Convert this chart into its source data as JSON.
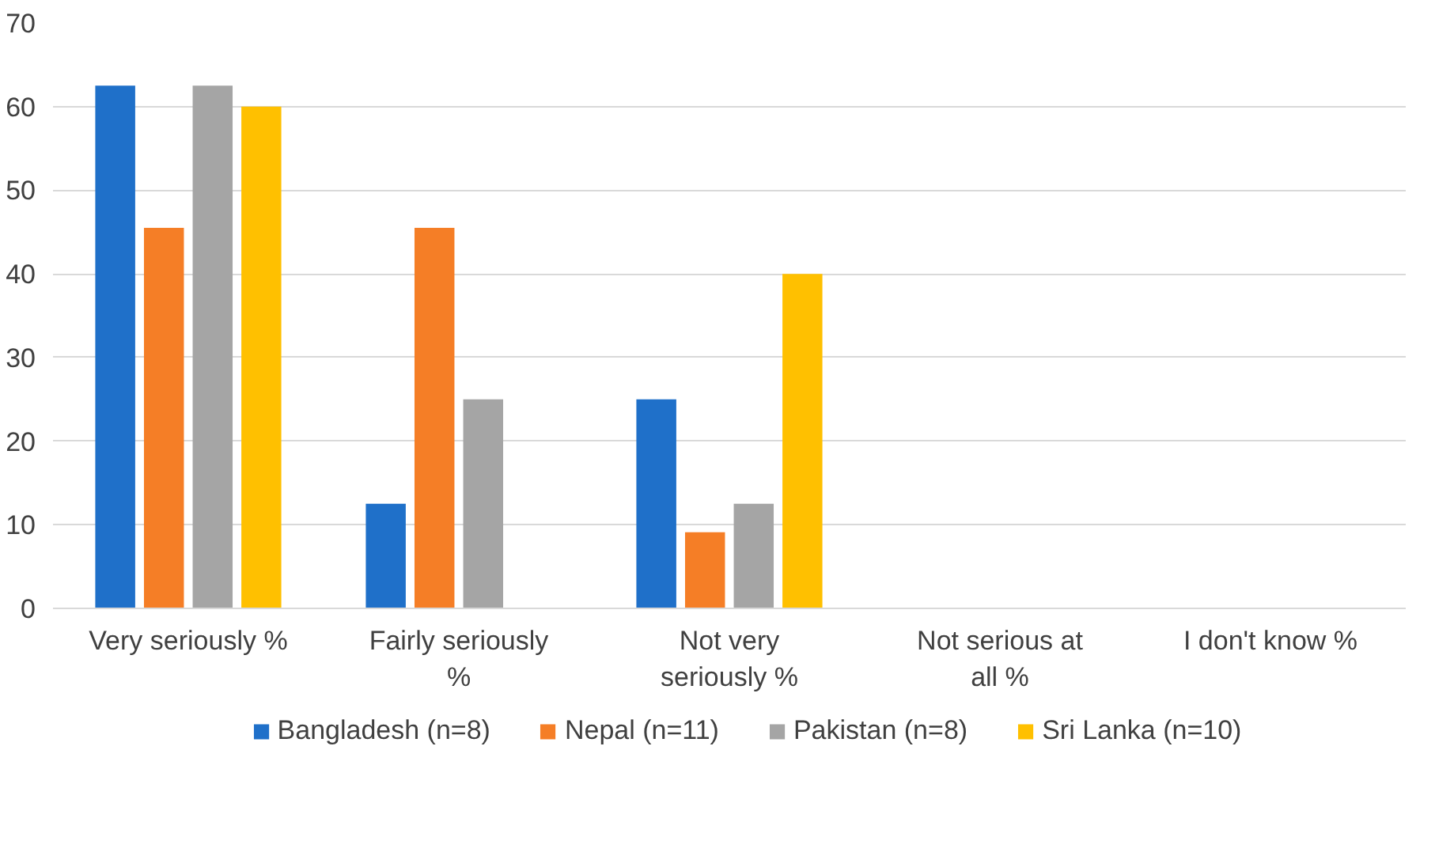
{
  "chart_data": {
    "type": "bar",
    "categories": [
      "Very seriously %",
      "Fairly seriously %",
      "Not very seriously %",
      "Not serious at all %",
      "I don't know %"
    ],
    "series": [
      {
        "name": "Bangladesh (n=8)",
        "color": "#1f70c9",
        "values": [
          62.5,
          12.5,
          25,
          0,
          0
        ]
      },
      {
        "name": "Nepal (n=11)",
        "color": "#f57e26",
        "values": [
          45.5,
          45.5,
          9.1,
          0,
          0
        ]
      },
      {
        "name": "Pakistan (n=8)",
        "color": "#a5a5a5",
        "values": [
          62.5,
          25,
          12.5,
          0,
          0
        ]
      },
      {
        "name": "Sri Lanka (n=10)",
        "color": "#ffc000",
        "values": [
          60,
          0,
          40,
          0,
          0
        ]
      }
    ],
    "ylim": [
      0,
      70
    ],
    "yticks": [
      0,
      10,
      20,
      30,
      40,
      50,
      60,
      70
    ],
    "grid": "y",
    "legend": "bottom"
  }
}
